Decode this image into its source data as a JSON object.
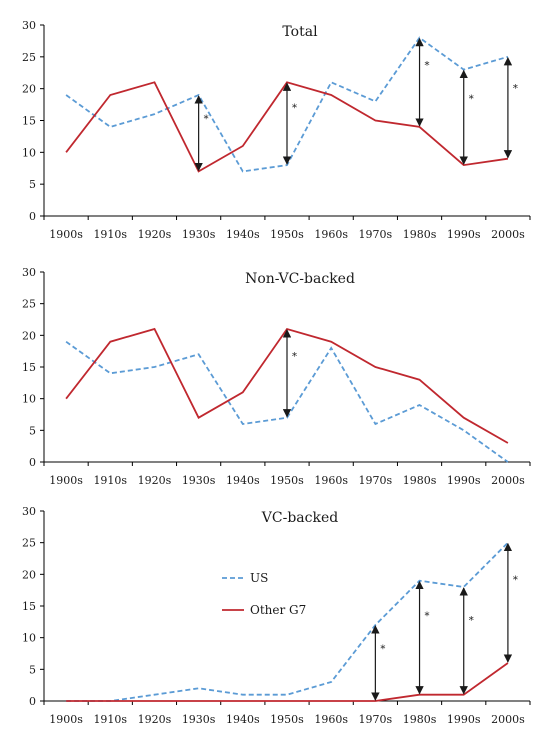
{
  "chart_data": [
    {
      "type": "line",
      "title": "Total",
      "categories": [
        "1900s",
        "1910s",
        "1920s",
        "1930s",
        "1940s",
        "1950s",
        "1960s",
        "1970s",
        "1980s",
        "1990s",
        "2000s"
      ],
      "ylim": [
        0,
        30
      ],
      "yticks": [
        0,
        5,
        10,
        15,
        20,
        25,
        30
      ],
      "series": [
        {
          "values": [
            19,
            14,
            16,
            19,
            7,
            8,
            21,
            18,
            28,
            23,
            25
          ],
          "color": "#5b9bd5",
          "style": "dashed"
        },
        {
          "values": [
            10,
            19,
            21,
            7,
            11,
            21,
            19,
            15,
            14,
            8,
            9
          ],
          "color": "#c0282f",
          "style": "solid"
        }
      ],
      "annotations": [
        {
          "category": "1930s",
          "label": "*",
          "from": 7,
          "to": 19
        },
        {
          "category": "1950s",
          "label": "*",
          "from": 8,
          "to": 21
        },
        {
          "category": "1980s",
          "label": "*",
          "from": 14,
          "to": 28
        },
        {
          "category": "1990s",
          "label": "*",
          "from": 8,
          "to": 23
        },
        {
          "category": "2000s",
          "label": "*",
          "from": 9,
          "to": 25
        }
      ]
    },
    {
      "type": "line",
      "title": "Non-VC-backed",
      "categories": [
        "1900s",
        "1910s",
        "1920s",
        "1930s",
        "1940s",
        "1950s",
        "1960s",
        "1970s",
        "1980s",
        "1990s",
        "2000s"
      ],
      "ylim": [
        0,
        30
      ],
      "yticks": [
        0,
        5,
        10,
        15,
        20,
        25,
        30
      ],
      "series": [
        {
          "values": [
            19,
            14,
            15,
            17,
            6,
            7,
            18,
            6,
            9,
            5,
            0
          ],
          "color": "#5b9bd5",
          "style": "dashed"
        },
        {
          "values": [
            10,
            19,
            21,
            7,
            11,
            21,
            19,
            15,
            13,
            7,
            3
          ],
          "color": "#c0282f",
          "style": "solid"
        }
      ],
      "annotations": [
        {
          "category": "1950s",
          "label": "*",
          "from": 7,
          "to": 21
        }
      ]
    },
    {
      "type": "line",
      "title": "VC-backed",
      "categories": [
        "1900s",
        "1910s",
        "1920s",
        "1930s",
        "1940s",
        "1950s",
        "1960s",
        "1970s",
        "1980s",
        "1990s",
        "2000s"
      ],
      "ylim": [
        0,
        30
      ],
      "yticks": [
        0,
        5,
        10,
        15,
        20,
        25,
        30
      ],
      "series": [
        {
          "name": "US",
          "values": [
            0,
            0,
            1,
            2,
            1,
            1,
            3,
            12,
            19,
            18,
            25
          ],
          "color": "#5b9bd5",
          "style": "dashed"
        },
        {
          "name": "Other G7",
          "values": [
            0,
            0,
            0,
            0,
            0,
            0,
            0,
            0,
            1,
            1,
            6
          ],
          "color": "#c0282f",
          "style": "solid"
        }
      ],
      "legend": "inside-left",
      "annotations": [
        {
          "category": "1970s",
          "label": "*",
          "from": 0,
          "to": 12
        },
        {
          "category": "1980s",
          "label": "*",
          "from": 1,
          "to": 19
        },
        {
          "category": "1990s",
          "label": "*",
          "from": 1,
          "to": 18
        },
        {
          "category": "2000s",
          "label": "*",
          "from": 6,
          "to": 25
        }
      ]
    }
  ]
}
